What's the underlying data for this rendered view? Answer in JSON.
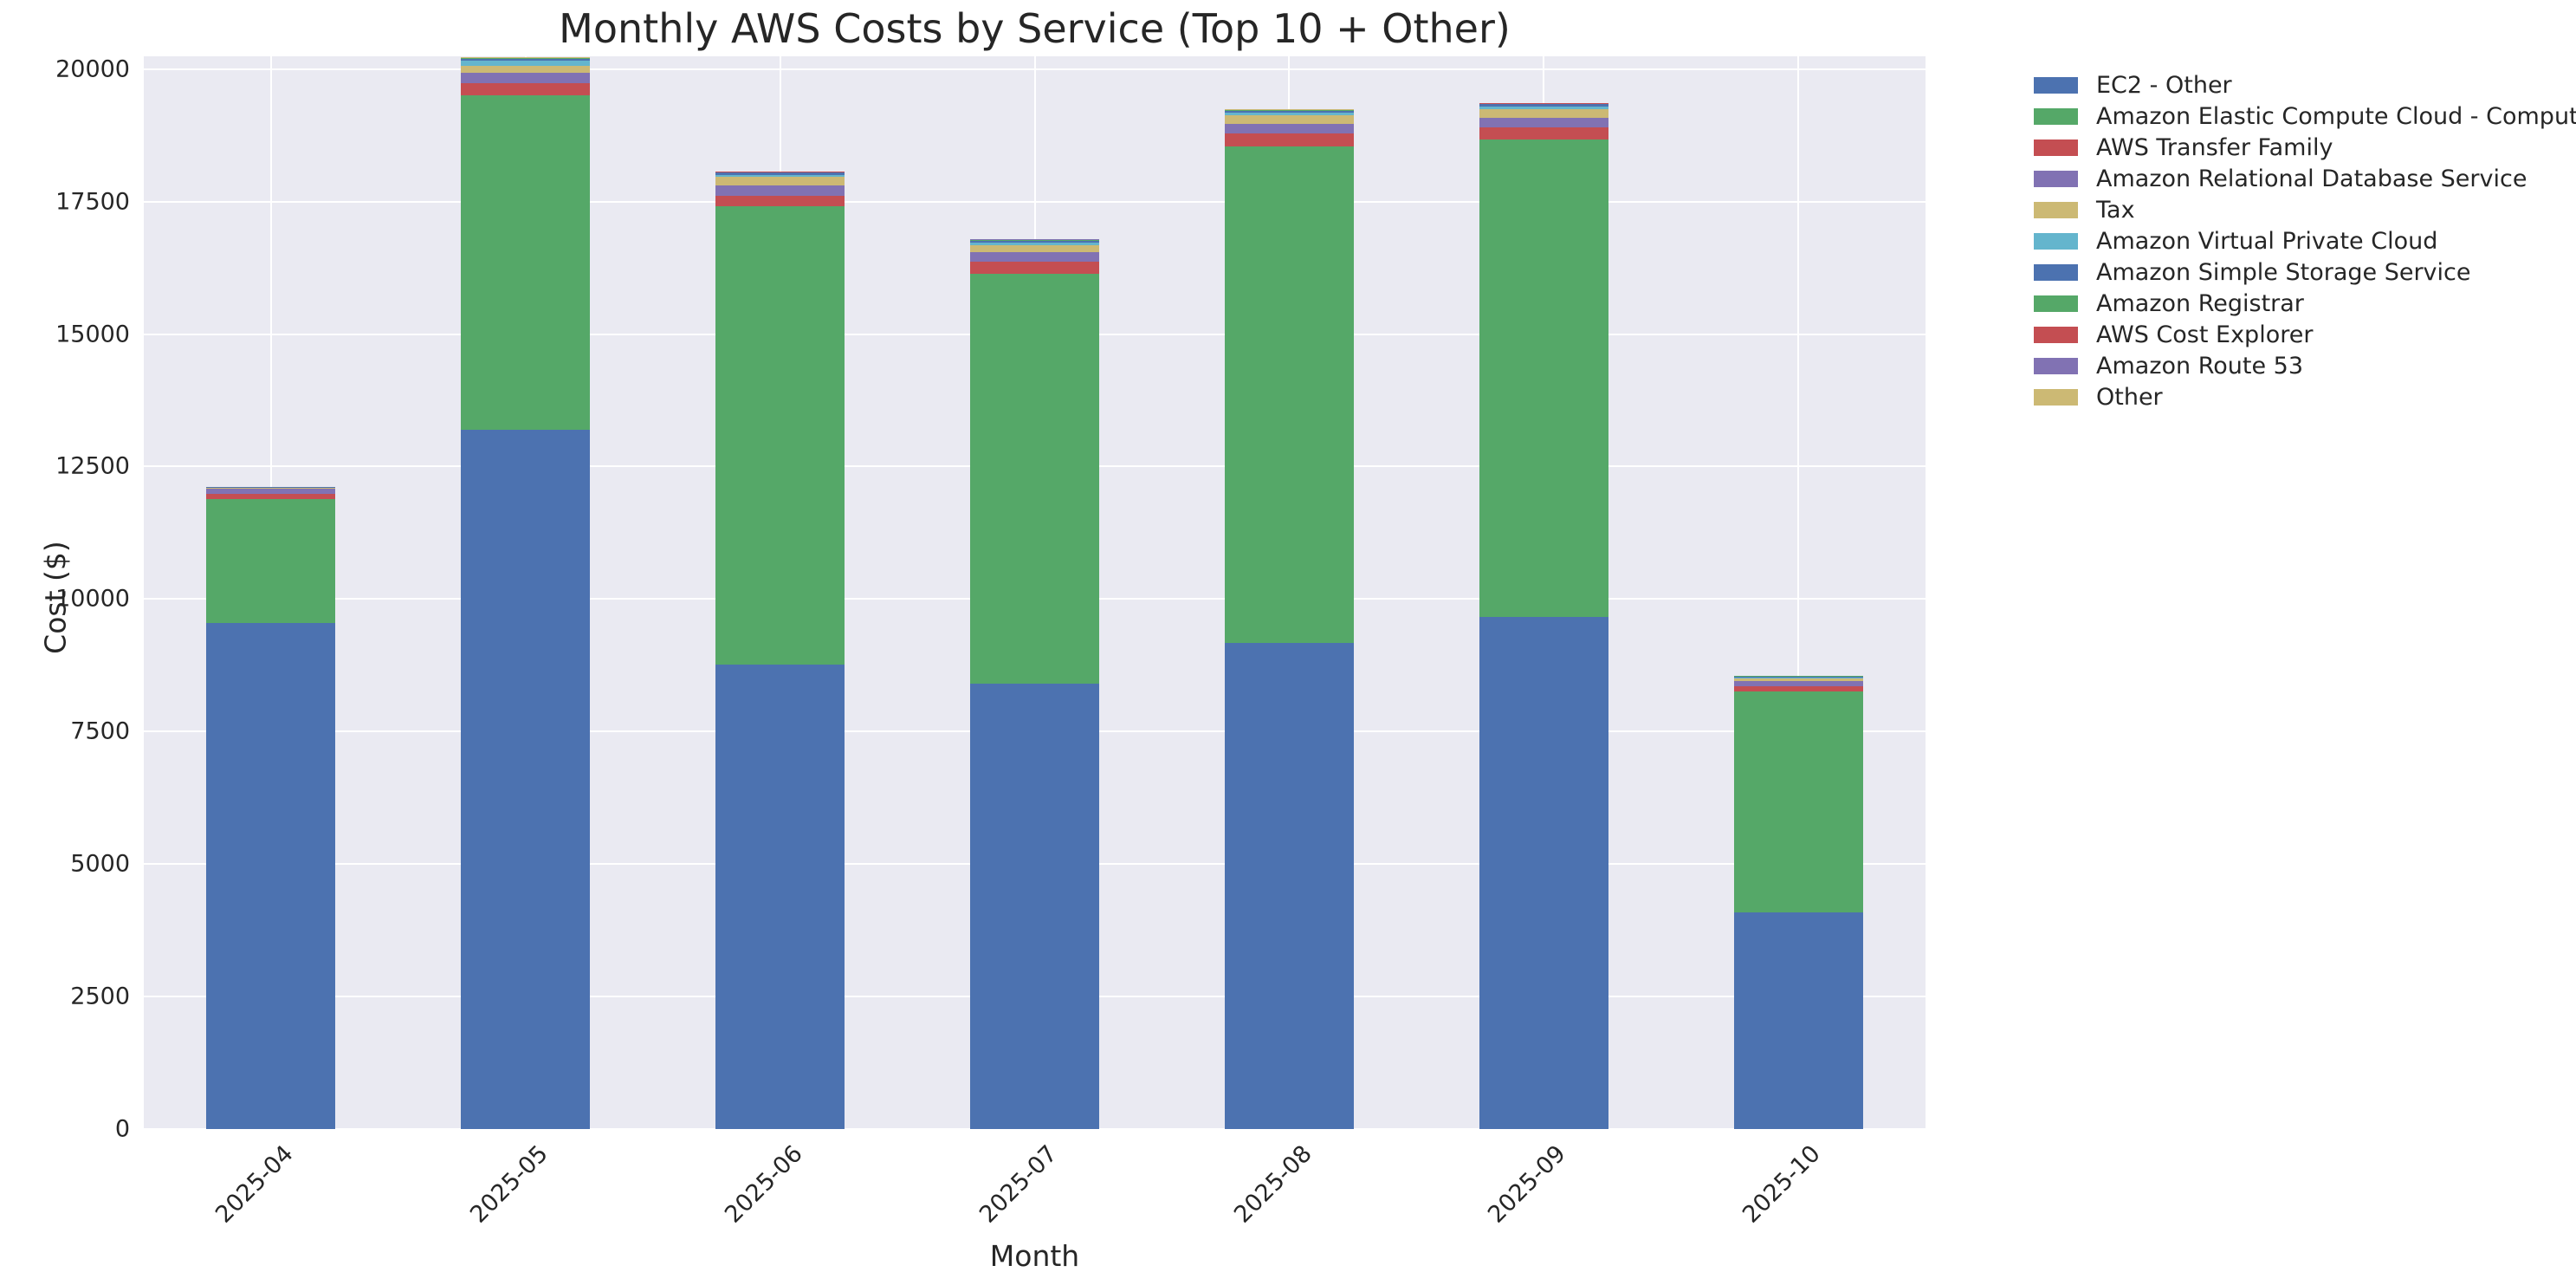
{
  "title": "Monthly AWS Costs by Service (Top 10 + Other)",
  "colors": {
    "figure_background": "#ffffff",
    "plot_background": "#eaeaf2",
    "gridline": "#ffffff",
    "text": "#262626",
    "palette": [
      "#4c72b0",
      "#55a868",
      "#c44e52",
      "#8172b3",
      "#ccb974",
      "#64b5cd"
    ]
  },
  "chart_data": {
    "type": "bar",
    "stacked": true,
    "title": "Monthly AWS Costs by Service (Top 10 + Other)",
    "xlabel": "Month",
    "ylabel": "Cost ($)",
    "categories": [
      "2025-04",
      "2025-05",
      "2025-06",
      "2025-07",
      "2025-08",
      "2025-09",
      "2025-10"
    ],
    "yticks": [
      0,
      2500,
      5000,
      7500,
      10000,
      12500,
      15000,
      17500,
      20000
    ],
    "ylim": [
      0,
      20240
    ],
    "grid": true,
    "legend_position": "outside upper right",
    "series": [
      {
        "name": "EC2 - Other",
        "color": "#4c72b0",
        "values": [
          9550,
          13200,
          8760,
          8410,
          9170,
          9670,
          4080
        ]
      },
      {
        "name": "Amazon Elastic Compute Cloud - Compute",
        "color": "#55a868",
        "values": [
          2340,
          6310,
          8660,
          7730,
          9370,
          9000,
          4170
        ]
      },
      {
        "name": "AWS Transfer Family",
        "color": "#c44e52",
        "values": [
          98,
          218,
          196,
          228,
          240,
          228,
          98
        ]
      },
      {
        "name": "Amazon Relational Database Service",
        "color": "#8172b3",
        "values": [
          98,
          196,
          184,
          174,
          184,
          184,
          98
        ]
      },
      {
        "name": "Tax",
        "color": "#ccb974",
        "values": [
          8,
          140,
          163,
          130,
          163,
          163,
          50
        ]
      },
      {
        "name": "Amazon Virtual Private Cloud",
        "color": "#64b5cd",
        "values": [
          6,
          88,
          44,
          54,
          44,
          54,
          15
        ]
      },
      {
        "name": "Amazon Simple Storage Service",
        "color": "#4c72b0",
        "values": [
          18,
          45,
          40,
          40,
          40,
          40,
          25
        ]
      },
      {
        "name": "Amazon Registrar",
        "color": "#55a868",
        "values": [
          2,
          10,
          10,
          10,
          10,
          10,
          8
        ]
      },
      {
        "name": "AWS Cost Explorer",
        "color": "#c44e52",
        "values": [
          1,
          5,
          6,
          6,
          6,
          6,
          5
        ]
      },
      {
        "name": "Amazon Route 53",
        "color": "#8172b3",
        "values": [
          1,
          3,
          5,
          5,
          5,
          5,
          4
        ]
      },
      {
        "name": "Other",
        "color": "#ccb974",
        "values": [
          1,
          2,
          4,
          4,
          4,
          4,
          3
        ]
      }
    ],
    "bar_totals": [
      12120,
      20220,
      18070,
      16790,
      19240,
      19360,
      8560
    ]
  }
}
